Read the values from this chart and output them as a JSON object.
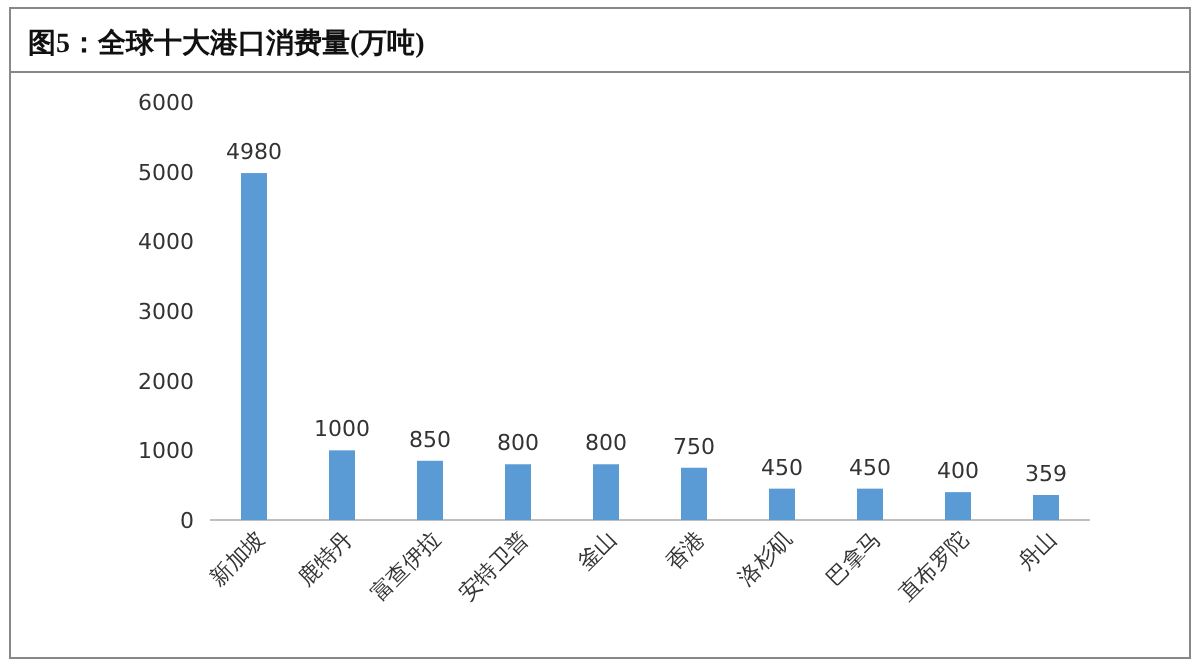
{
  "chart_data": {
    "type": "bar",
    "title": "图5：全球十大港口消费量(万吨)",
    "categories": [
      "新加坡",
      "鹿特丹",
      "富查伊拉",
      "安特卫普",
      "釜山",
      "香港",
      "洛杉矶",
      "巴拿马",
      "直布罗陀",
      "舟山"
    ],
    "values": [
      4980,
      1000,
      850,
      800,
      800,
      750,
      450,
      450,
      400,
      359
    ],
    "color": "#5b9bd5",
    "ylim": [
      0,
      6000
    ],
    "yticks": [
      0,
      1000,
      2000,
      3000,
      4000,
      5000,
      6000
    ],
    "grid": false,
    "data_labels": true
  }
}
